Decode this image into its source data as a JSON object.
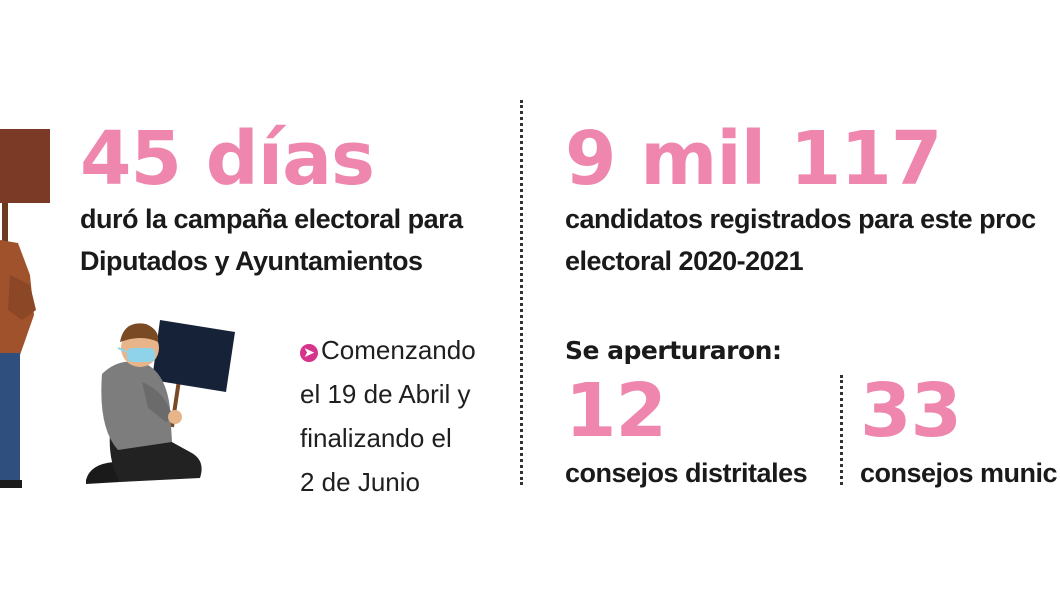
{
  "left_block": {
    "big_number": "45 días",
    "subtitle_line1": "duró la campaña electoral para",
    "subtitle_line2": "Diputados y Ayuntamientos",
    "note_line1": "Comenzando",
    "note_line2": "el 19 de Abril y",
    "note_line3": "finalizando el",
    "note_line4": "2 de Junio",
    "note_icon": "arrow-right-circle-icon"
  },
  "right_block": {
    "big_number": "9 mil 117",
    "subtitle_line1": "candidatos registrados para este proc",
    "subtitle_line2": "electoral 2020-2021",
    "heading": "Se aperturaron:",
    "stat1_number": "12",
    "stat1_label": "consejos distritales",
    "stat2_number": "33",
    "stat2_label": "consejos munic"
  },
  "colors": {
    "accent_pink": "#ee86ae",
    "icon_magenta": "#d6338a",
    "text": "#1a1a1a"
  }
}
